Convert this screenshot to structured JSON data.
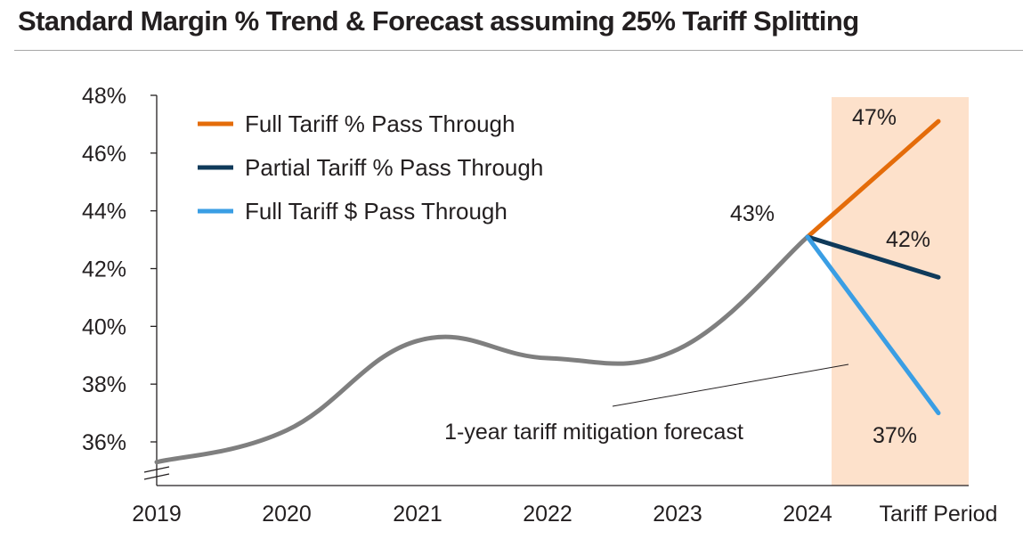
{
  "title": "Standard Margin % Trend & Forecast assuming 25% Tariff Splitting",
  "chart_data": {
    "type": "line",
    "title": "Standard Margin % Trend & Forecast assuming 25% Tariff Splitting",
    "categories": [
      "2019",
      "2020",
      "2021",
      "2022",
      "2023",
      "2024",
      "Tariff Period"
    ],
    "y_ticks": [
      "36%",
      "38%",
      "40%",
      "42%",
      "44%",
      "46%",
      "48%"
    ],
    "ylim": [
      35,
      48
    ],
    "y_axis_break": true,
    "grid": false,
    "legend_position": "top-left",
    "history": {
      "color": "#7f7f7f",
      "x": [
        0,
        1,
        2,
        3,
        4,
        5
      ],
      "values": [
        35.3,
        36.4,
        39.5,
        38.9,
        39.2,
        43.1
      ]
    },
    "series": [
      {
        "name": "Full Tariff % Pass Through",
        "color": "#e46c0a",
        "x": [
          5,
          6
        ],
        "values": [
          43.1,
          47.1
        ]
      },
      {
        "name": "Partial Tariff % Pass Through",
        "color": "#0f3a5a",
        "x": [
          5,
          6
        ],
        "values": [
          43.1,
          41.7
        ]
      },
      {
        "name": "Full Tariff $ Pass Through",
        "color": "#3a9ee4",
        "x": [
          5,
          6
        ],
        "values": [
          43.1,
          37.0
        ]
      }
    ],
    "highlight_region": {
      "label": "Tariff Period",
      "color": "#fde1cb"
    },
    "annotations": {
      "value_2024": "43%",
      "value_full": "47%",
      "value_partial": "42%",
      "value_dollar": "37%",
      "forecast_note": "1-year tariff mitigation forecast"
    }
  }
}
